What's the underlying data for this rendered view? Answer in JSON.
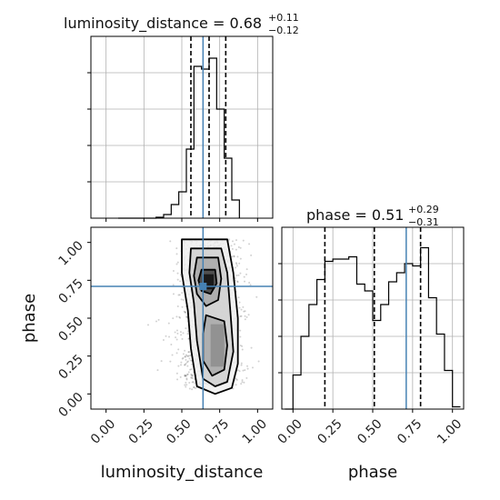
{
  "chart_data": [
    {
      "type": "histogram",
      "panel": "luminosity_distance marginal",
      "title": {
        "main": "luminosity_distance = 0.68",
        "plus": "+0.11",
        "minus": "−0.12"
      },
      "xlim": [
        -0.1,
        1.1
      ],
      "quantiles": [
        0.56,
        0.68,
        0.79
      ],
      "truth": 0.64,
      "bin_edges": [
        0.08,
        0.13,
        0.18,
        0.23,
        0.28,
        0.33,
        0.38,
        0.43,
        0.48,
        0.53,
        0.58,
        0.63,
        0.68,
        0.73,
        0.78,
        0.83,
        0.88
      ],
      "counts": [
        0,
        0,
        0,
        0,
        0,
        1,
        4,
        15,
        29,
        76,
        167,
        164,
        176,
        120,
        66,
        20,
        0
      ],
      "x_tick_values": [
        0.0,
        0.25,
        0.5,
        0.75,
        1.0
      ]
    },
    {
      "type": "histogram",
      "panel": "phase marginal",
      "title": {
        "main": "phase = 0.51",
        "plus": "+0.29",
        "minus": "−0.31"
      },
      "xlim": [
        -0.07,
        1.07
      ],
      "quantiles": [
        0.2,
        0.51,
        0.8
      ],
      "truth": 0.71,
      "bin_edges": [
        -0.05,
        0.0,
        0.05,
        0.1,
        0.15,
        0.2,
        0.25,
        0.3,
        0.35,
        0.4,
        0.45,
        0.5,
        0.55,
        0.6,
        0.65,
        0.7,
        0.75,
        0.8,
        0.85,
        0.9,
        0.95,
        1.0,
        1.05
      ],
      "counts": [
        0,
        15,
        32,
        46,
        57,
        65,
        66,
        66,
        67,
        55,
        52,
        39,
        46,
        56,
        60,
        64,
        63,
        71,
        49,
        33,
        17,
        1
      ],
      "x_tick_labels": [
        "0.00",
        "0.25",
        "0.50",
        "0.75",
        "1.00"
      ],
      "x_tick_values": [
        0.0,
        0.25,
        0.5,
        0.75,
        1.0
      ],
      "xlabel": "phase"
    },
    {
      "type": "scatter",
      "panel": "phase vs luminosity_distance 2D",
      "xlabel": "luminosity_distance",
      "ylabel": "phase",
      "xlim": [
        -0.1,
        1.1
      ],
      "ylim": [
        -0.1,
        1.1
      ],
      "x_tick_labels": [
        "0.00",
        "0.25",
        "0.50",
        "0.75",
        "1.00"
      ],
      "x_tick_values": [
        0.0,
        0.25,
        0.5,
        0.75,
        1.0
      ],
      "y_tick_labels": [
        "0.00",
        "0.25",
        "0.50",
        "0.75",
        "1.00"
      ],
      "y_tick_values": [
        0.0,
        0.25,
        0.5,
        0.75,
        1.0
      ],
      "truth": {
        "x": 0.64,
        "y": 0.71
      },
      "truth_color": "#4682b4",
      "density_peak_upper": {
        "x": 0.68,
        "y": 0.75
      },
      "density_peak_lower": {
        "x": 0.73,
        "y": 0.35
      }
    }
  ]
}
